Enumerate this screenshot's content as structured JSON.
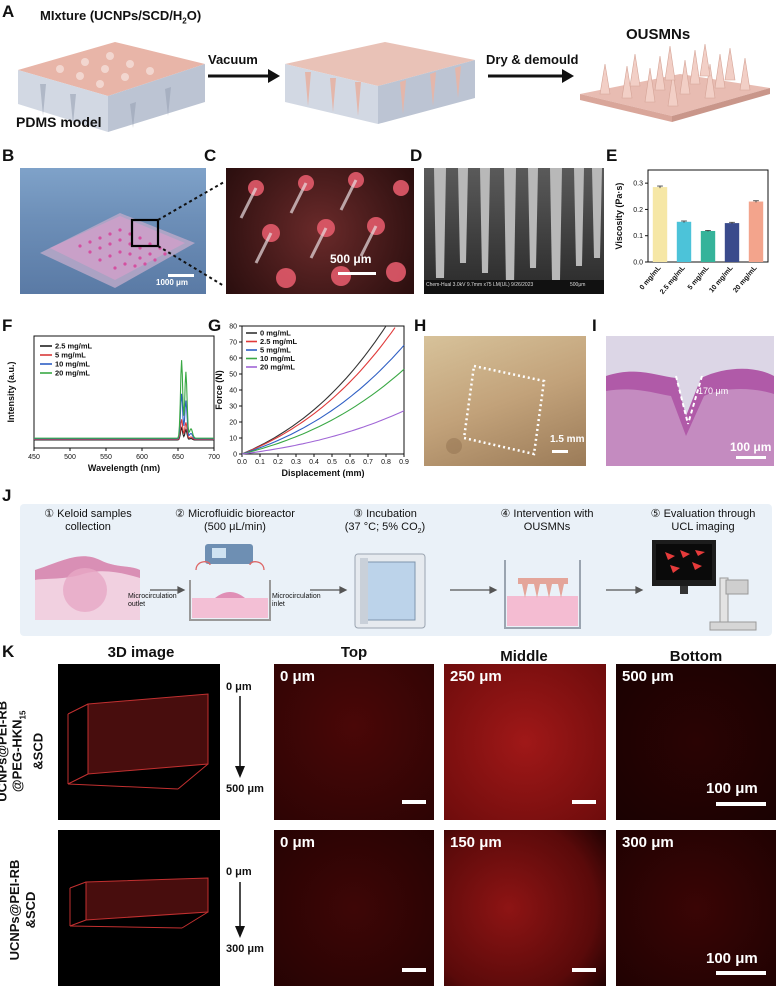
{
  "panels": {
    "A": {
      "label": "A",
      "mixture": "MIxture (UCNPs/SCD/H",
      "mixture_sub": "2",
      "mixture_end": "O)",
      "pdms": "PDMS model",
      "vacuum": "Vacuum",
      "dry": "Dry & demould",
      "product": "OUSMNs"
    },
    "B": {
      "label": "B",
      "scale": "1000 μm"
    },
    "C": {
      "label": "C",
      "scale": "500 μm"
    },
    "D": {
      "label": "D",
      "sem_info": "Chem-Hual 3.0kV 9.7mm x75 LM(UL) 9/26/2023",
      "sem_scale": "500μm"
    },
    "E": {
      "label": "E"
    },
    "F": {
      "label": "F"
    },
    "G": {
      "label": "G"
    },
    "H": {
      "label": "H",
      "scale": "1.5 mm"
    },
    "I": {
      "label": "I",
      "depth": "170 μm",
      "scale": "100 μm"
    },
    "J": {
      "label": "J",
      "steps": [
        {
          "num": "1",
          "text": "Keloid samples collection"
        },
        {
          "num": "2",
          "text": "Microfluidic bioreactor",
          "sub": "(500 μL/min)"
        },
        {
          "num": "3",
          "text": "Incubation",
          "sub": "(37 °C; 5% CO",
          "sub_sub": "2",
          "sub_end": ")"
        },
        {
          "num": "4",
          "text": "Intervention with",
          "sub": "OUSMNs"
        },
        {
          "num": "5",
          "text": "Evaluation through",
          "sub": "UCL imaging"
        }
      ],
      "outlet": "Microcirculation outlet",
      "inlet": "Microcirculation inlet"
    },
    "K": {
      "label": "K",
      "headers": [
        "3D image",
        "Top",
        "Middle",
        "Bottom"
      ],
      "row1": {
        "name_a": "UCNPs@PEI-RB",
        "name_b": "@PEG-HKN",
        "name_b_sub": "15",
        "name_c": "&SCD",
        "axis_top": "0 μm",
        "axis_bottom": "500 μm",
        "depths": [
          "0 μm",
          "250 μm",
          "500 μm"
        ],
        "scale": "100 μm"
      },
      "row2": {
        "name_a": "UCNPs@PEI-RB",
        "name_b": "&SCD",
        "axis_top": "0 μm",
        "axis_bottom": "300 μm",
        "depths": [
          "0 μm",
          "150 μm",
          "300 μm"
        ],
        "scale": "100 μm"
      }
    }
  },
  "chart_data": [
    {
      "type": "bar",
      "panel": "E",
      "ylabel": "Viscosity (Pa·s)",
      "categories": [
        "0 mg/mL",
        "2.5 mg/mL",
        "5 mg/mL",
        "10 mg/mL",
        "20 mg/mL"
      ],
      "values": [
        0.285,
        0.153,
        0.118,
        0.148,
        0.23
      ],
      "errors": [
        0.004,
        0.003,
        0.002,
        0.003,
        0.003
      ],
      "colors": [
        "#f6e7a6",
        "#4cc3d9",
        "#35b39a",
        "#3a4b8c",
        "#f3a48c"
      ],
      "ylim": [
        0,
        0.35
      ],
      "yticks": [
        0.0,
        0.1,
        0.2,
        0.3
      ]
    },
    {
      "type": "line",
      "panel": "F",
      "xlabel": "Wavelength (nm)",
      "ylabel": "Intensity (a.u.)",
      "xlim": [
        450,
        700
      ],
      "xticks": [
        450,
        500,
        550,
        600,
        650,
        700
      ],
      "series": [
        {
          "name": "2.5 mg/mL",
          "color": "#222222",
          "peak": 0.12
        },
        {
          "name": "5 mg/mL",
          "color": "#d83a3a",
          "peak": 0.2
        },
        {
          "name": "10 mg/mL",
          "color": "#2f5fc4",
          "peak": 0.45
        },
        {
          "name": "20 mg/mL",
          "color": "#3aa845",
          "peak": 0.78
        }
      ]
    },
    {
      "type": "line",
      "panel": "G",
      "xlabel": "Displacement (mm)",
      "ylabel": "Force (N)",
      "xlim": [
        0,
        0.9
      ],
      "ylim": [
        0,
        80
      ],
      "xticks": [
        0.0,
        0.1,
        0.2,
        0.3,
        0.4,
        0.5,
        0.6,
        0.7,
        0.8,
        0.9
      ],
      "yticks": [
        0,
        10,
        20,
        30,
        40,
        50,
        60,
        70,
        80
      ],
      "series": [
        {
          "name": "0 mg/mL",
          "color": "#333333",
          "end": [
            0.8,
            80
          ]
        },
        {
          "name": "2.5 mg/mL",
          "color": "#e03a3a",
          "end": [
            0.85,
            79
          ]
        },
        {
          "name": "5 mg/mL",
          "color": "#2f5fc4",
          "end": [
            0.9,
            68
          ]
        },
        {
          "name": "10 mg/mL",
          "color": "#3aa845",
          "end": [
            0.9,
            53
          ]
        },
        {
          "name": "20 mg/mL",
          "color": "#a066d6",
          "end": [
            0.9,
            27
          ]
        }
      ]
    }
  ]
}
